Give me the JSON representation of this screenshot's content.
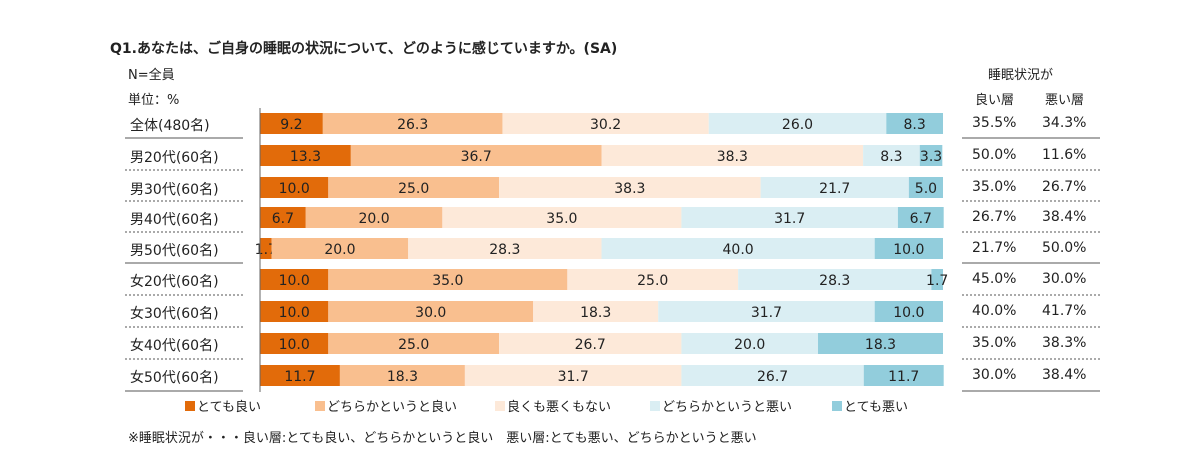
{
  "title": "Q1.あなたは、ご自身の睡眠の状況について、どのように感じていますか。(SA)",
  "base_label": "N=全員",
  "unit_label": "単位：%",
  "summary_header": {
    "top": "睡眠状況が",
    "good": "良い層",
    "bad": "悪い層"
  },
  "note": "※睡眠状況が・・・良い層:とても良い、どちらかというと良い　悪い層:とても悪い、どちらかというと悪い",
  "colors": [
    "#E26B0A",
    "#F9BF8F",
    "#FDE9D9",
    "#DAEEF3",
    "#92CDDC"
  ],
  "chart_data": {
    "type": "bar",
    "stacked": true,
    "orientation": "horizontal",
    "xlim": [
      0,
      100
    ],
    "categories": [
      "全体(480名)",
      "男20代(60名)",
      "男30代(60名)",
      "男40代(60名)",
      "男50代(60名)",
      "女20代(60名)",
      "女30代(60名)",
      "女40代(60名)",
      "女50代(60名)"
    ],
    "series": [
      {
        "name": "とても良い",
        "values": [
          9.2,
          13.3,
          10.0,
          6.7,
          1.7,
          10.0,
          10.0,
          10.0,
          11.7
        ]
      },
      {
        "name": "どちらかというと良い",
        "values": [
          26.3,
          36.7,
          25.0,
          20.0,
          20.0,
          35.0,
          30.0,
          25.0,
          18.3
        ]
      },
      {
        "name": "良くも悪くもない",
        "values": [
          30.2,
          38.3,
          38.3,
          35.0,
          28.3,
          25.0,
          18.3,
          26.7,
          31.7
        ]
      },
      {
        "name": "どちらかというと悪い",
        "values": [
          26.0,
          8.3,
          21.7,
          31.7,
          40.0,
          28.3,
          31.7,
          20.0,
          26.7
        ]
      },
      {
        "name": "とても悪い",
        "values": [
          8.3,
          3.3,
          5.0,
          6.7,
          10.0,
          1.7,
          10.0,
          18.3,
          11.7
        ]
      }
    ],
    "summary": {
      "good": [
        "35.5%",
        "50.0%",
        "35.0%",
        "26.7%",
        "21.7%",
        "45.0%",
        "40.0%",
        "35.0%",
        "30.0%"
      ],
      "bad": [
        "34.3%",
        "11.6%",
        "26.7%",
        "38.4%",
        "50.0%",
        "30.0%",
        "41.7%",
        "38.3%",
        "38.4%"
      ]
    }
  }
}
